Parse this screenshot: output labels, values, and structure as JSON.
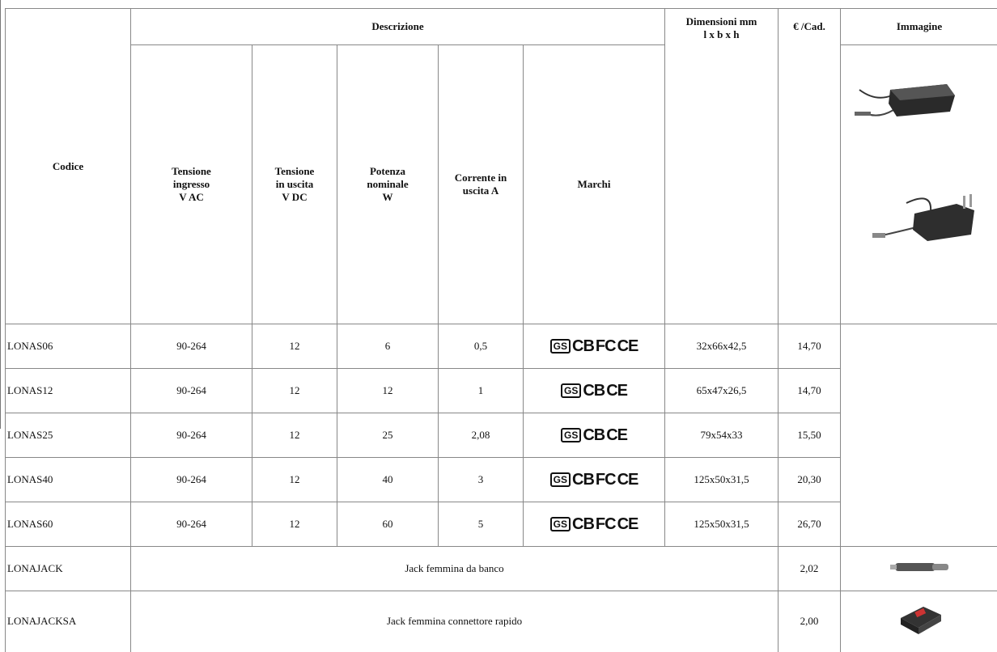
{
  "header": {
    "codice": "Codice",
    "descrizione": "Descrizione",
    "columns": [
      "Tensione\ningresso\nV AC",
      "Tensione\nin uscita\nV DC",
      "Potenza\nnominale\nW",
      "Corrente in\nuscita A",
      "Marchi"
    ],
    "dimensioni": "Dimensioni mm\nl x b x h",
    "prezzo": "€ /Cad.",
    "immagine": "Immagine"
  },
  "rows": [
    {
      "codice": "LONAS06",
      "ingresso": "90-264",
      "uscita": "12",
      "potenza": "6",
      "corrente": "0,5",
      "marchi": [
        "GS",
        "CB",
        "FC",
        "CE"
      ],
      "dimensioni": "32x66x42,5",
      "prezzo": "14,70"
    },
    {
      "codice": "LONAS12",
      "ingresso": "90-264",
      "uscita": "12",
      "potenza": "12",
      "corrente": "1",
      "marchi": [
        "GS",
        "CB",
        "CE"
      ],
      "dimensioni": "65x47x26,5",
      "prezzo": "14,70"
    },
    {
      "codice": "LONAS25",
      "ingresso": "90-264",
      "uscita": "12",
      "potenza": "25",
      "corrente": "2,08",
      "marchi": [
        "GS",
        "CB",
        "CE"
      ],
      "dimensioni": "79x54x33",
      "prezzo": "15,50"
    },
    {
      "codice": "LONAS40",
      "ingresso": "90-264",
      "uscita": "12",
      "potenza": "40",
      "corrente": "3",
      "marchi": [
        "GS",
        "CB",
        "FC",
        "CE"
      ],
      "dimensioni": "125x50x31,5",
      "prezzo": "20,30"
    },
    {
      "codice": "LONAS60",
      "ingresso": "90-264",
      "uscita": "12",
      "potenza": "60",
      "corrente": "5",
      "marchi": [
        "GS",
        "CB",
        "FC",
        "CE"
      ],
      "dimensioni": "125x50x31,5",
      "prezzo": "26,70"
    }
  ],
  "accessori": [
    {
      "codice": "LONAJACK",
      "descrizione": "Jack  femmina da banco",
      "prezzo": "2,02"
    },
    {
      "codice": "LONAJACKSA",
      "descrizione": "Jack femmina connettore rapido",
      "prezzo": "2,00"
    }
  ]
}
